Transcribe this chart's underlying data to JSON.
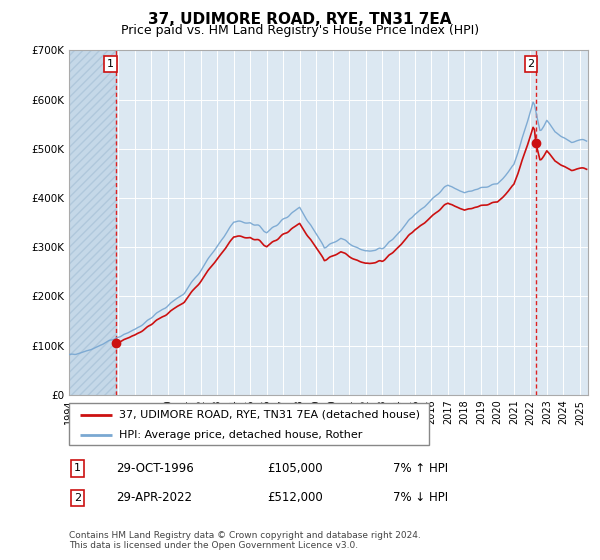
{
  "title": "37, UDIMORE ROAD, RYE, TN31 7EA",
  "subtitle": "Price paid vs. HM Land Registry's House Price Index (HPI)",
  "legend_line1": "37, UDIMORE ROAD, RYE, TN31 7EA (detached house)",
  "legend_line2": "HPI: Average price, detached house, Rother",
  "transaction1_date": "29-OCT-1996",
  "transaction1_price": 105000,
  "transaction1_info": "7% ↑ HPI",
  "transaction2_date": "29-APR-2022",
  "transaction2_price": 512000,
  "transaction2_info": "7% ↓ HPI",
  "footnote": "Contains HM Land Registry data © Crown copyright and database right 2024.\nThis data is licensed under the Open Government Licence v3.0.",
  "hpi_color": "#7aa8d2",
  "price_color": "#cc1111",
  "transaction_vline_color": "#dd2222",
  "background_plot": "#dce8f2",
  "background_hatch_color": "#c5d8e8",
  "ylim": [
    0,
    700000
  ],
  "xlim_start": 1994.0,
  "xlim_end": 2025.5,
  "transaction1_x": 1996.833,
  "transaction2_x": 2022.333
}
